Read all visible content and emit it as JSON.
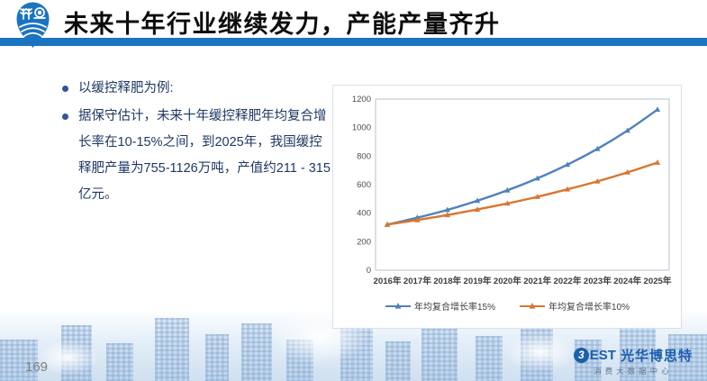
{
  "slide": {
    "title": "未来十年行业继续发力，产能产量齐升",
    "page_number": "169"
  },
  "bullets": [
    "以缓控释肥为例:",
    "据保守估计，未来十年缓控释肥年均复合增长率在10-15%之间，到2025年，我国缓控释肥产量为755-1126万吨，产值约211 - 315亿元。"
  ],
  "chart_data": {
    "type": "line",
    "title": "",
    "xlabel": "",
    "ylabel": "",
    "categories": [
      "2016年",
      "2017年",
      "2018年",
      "2019年",
      "2020年",
      "2021年",
      "2022年",
      "2023年",
      "2024年",
      "2025年"
    ],
    "series": [
      {
        "name": "年均复合增长率15%",
        "color": "#4E81BD",
        "values": [
          320,
          368,
          423,
          487,
          560,
          644,
          740,
          851,
          979,
          1126
        ]
      },
      {
        "name": "年均复合增长率10%",
        "color": "#D9762F",
        "values": [
          320,
          352,
          387,
          426,
          468,
          515,
          567,
          623,
          686,
          755
        ]
      }
    ],
    "ylim": [
      0,
      1200
    ],
    "ytick_interval": 200,
    "grid": false,
    "legend_position": "bottom",
    "marker": "triangle"
  },
  "brand": {
    "b_icon_glyph": "3",
    "name_latin": "EST",
    "name_cn": "光华博思特",
    "subtitle": "消费大数据中心"
  },
  "colors": {
    "header_bar": "#1B74C0",
    "logo_blue": "#1B74C0",
    "body_text": "#1F3864",
    "brand_blue": "#1B5FAD",
    "series_15pct": "#4E81BD",
    "series_10pct": "#D9762F",
    "page_number_gray": "#7F7F7F"
  }
}
